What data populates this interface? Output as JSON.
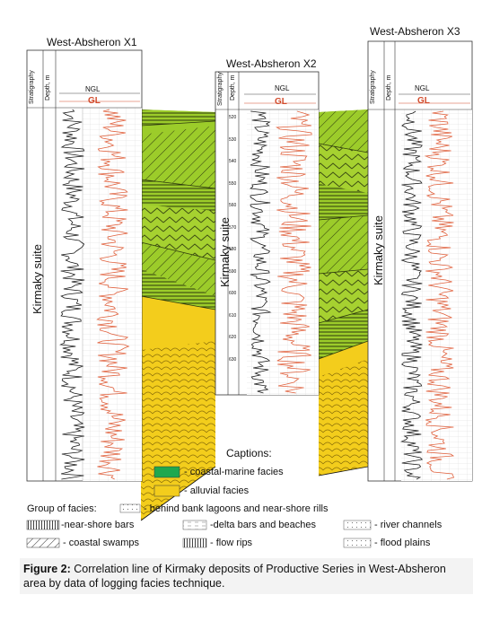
{
  "wells": [
    {
      "name": "West-Absheron X1"
    },
    {
      "name": "West-Absheron X2"
    },
    {
      "name": "West-Absheron X3"
    }
  ],
  "headers": {
    "stratigraphy": "Stratigraphy",
    "depth": "Depth, m",
    "ngl": "NGL",
    "gl": "GL"
  },
  "suite_label": "Kirmaky suite",
  "x2_depths": [
    "520",
    "530",
    "540",
    "550",
    "560",
    "570",
    "580",
    "590",
    "600",
    "610",
    "620",
    "630"
  ],
  "captions": {
    "title": "Captions:",
    "items": [
      {
        "label": "- coastal-marine facies",
        "color": "#1fa84f"
      },
      {
        "label": "- alluvial facies",
        "color": "#f3cd1c"
      }
    ]
  },
  "facies": {
    "group_label": "Group of facies:",
    "items": [
      {
        "label": "- behind bank lagoons and near-shore rills"
      },
      {
        "label": "-near-shore bars"
      },
      {
        "label": "-delta bars and beaches"
      },
      {
        "label": "- river channels"
      },
      {
        "label": "- coastal swamps"
      },
      {
        "label": "- flow rips"
      },
      {
        "label": "- flood plains"
      }
    ]
  },
  "figure": {
    "label": "Figure 2:",
    "text": "Correlation line of Kirmaky deposits of Productive Series in West-Absheron area by data of logging facies technique."
  },
  "colors": {
    "green_facies": "#9ccc2a",
    "dark_green": "#6e9a1a",
    "alluvial": "#f3cd1c",
    "ngl_curve": "#1a1a1a",
    "gl_curve": "#e0603c"
  }
}
